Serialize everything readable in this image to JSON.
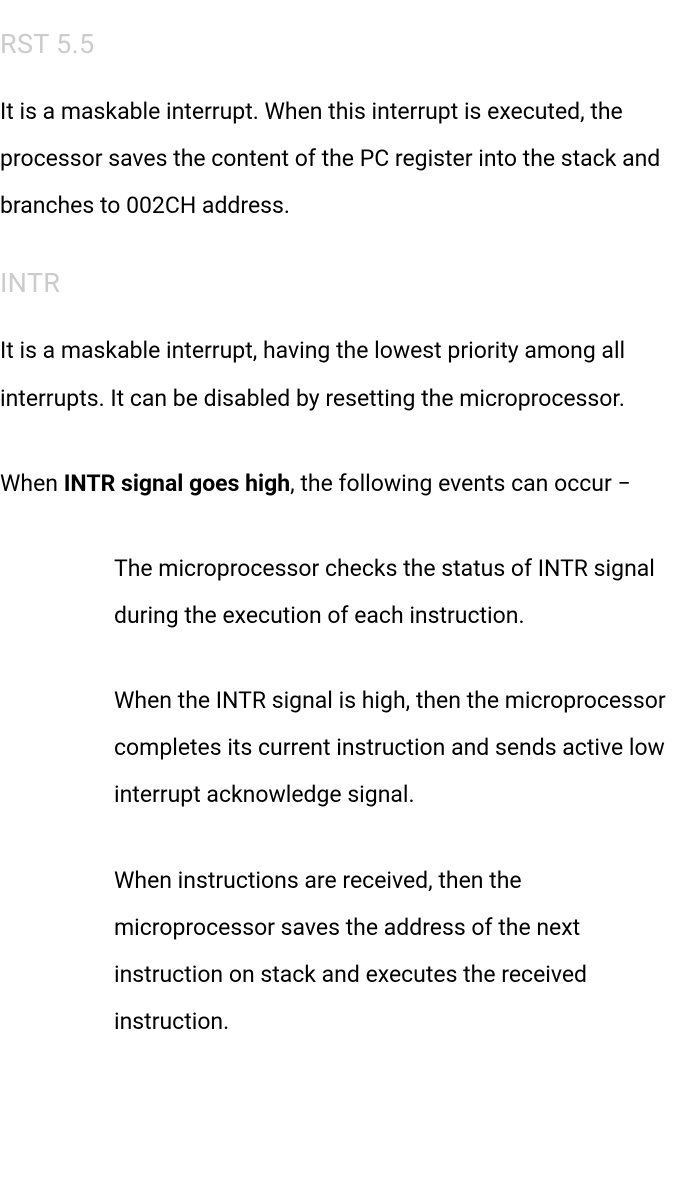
{
  "sections": {
    "rst55": {
      "heading": "RST 5.5",
      "description": "It is a maskable interrupt. When this interrupt is executed, the processor saves the content of the PC register into the stack and branches to 002CH address."
    },
    "intr": {
      "heading": "INTR",
      "description": "It is a maskable interrupt, having the lowest priority among all interrupts. It can be disabled by resetting the microprocessor.",
      "intro_prefix": "When ",
      "intro_bold": "INTR signal goes high",
      "intro_suffix": ", the following events can occur −",
      "events": [
        "The microprocessor checks the status of INTR signal during the execution of each instruction.",
        "When the INTR signal is high, then the microprocessor completes its current instruction and sends active low interrupt acknowledge signal.",
        "When instructions are received, then the microprocessor saves the address of the next instruction on stack and executes the received instruction."
      ]
    }
  },
  "colors": {
    "heading_color": "#cccccc",
    "text_color": "#000000",
    "background": "#ffffff"
  },
  "typography": {
    "heading_fontsize": 27,
    "body_fontsize": 23,
    "line_height": 2.05
  }
}
